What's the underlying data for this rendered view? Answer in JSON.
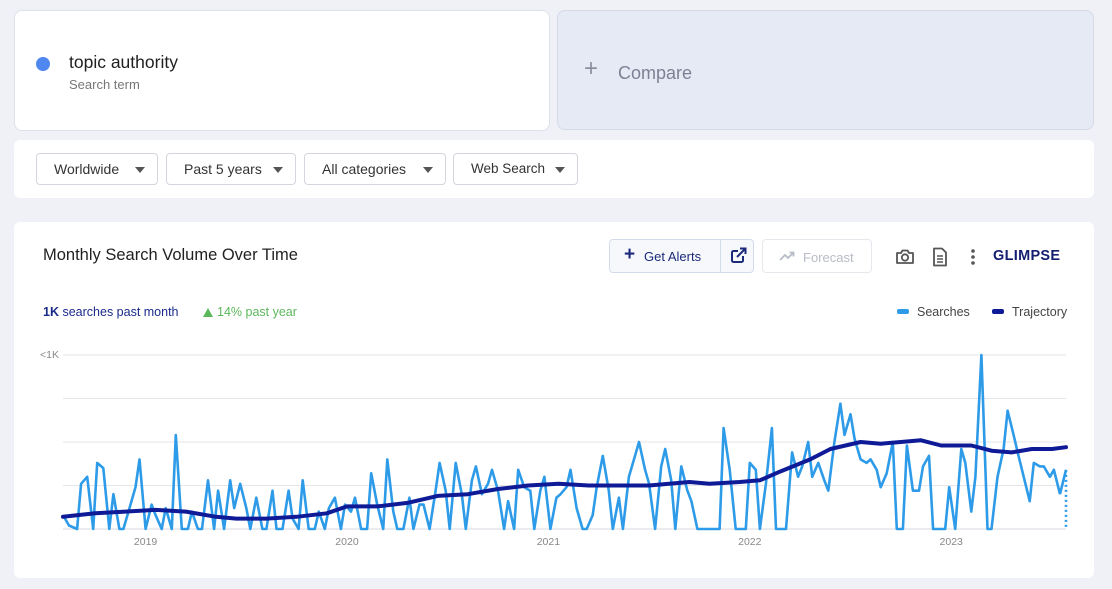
{
  "term": {
    "name": "topic authority",
    "subtitle": "Search term",
    "dot_color": "#4f86f0"
  },
  "compare": {
    "plus": "+",
    "label": "Compare"
  },
  "filters": {
    "region": "Worldwide",
    "time": "Past 5 years",
    "category": "All categories",
    "source": "Web Search"
  },
  "chart_header": {
    "title": "Monthly Search Volume Over Time",
    "get_alerts": "Get Alerts",
    "forecast": "Forecast",
    "brand": "GLIMPSE"
  },
  "stats": {
    "volume_bold": "1K",
    "volume_rest": "searches past month",
    "growth": "14% past year",
    "growth_color": "#5cb85c"
  },
  "legend": {
    "searches": "Searches",
    "trajectory": "Trajectory",
    "searches_color": "#2e9be8",
    "trajectory_color": "#0e1a96"
  },
  "chart_data": {
    "type": "line",
    "y_tick_label": "<1K",
    "ylim": [
      0,
      100
    ],
    "grid": true,
    "legend_position": "top-right",
    "x_ticks": [
      {
        "label": "2019",
        "date": 2019.0
      },
      {
        "label": "2020",
        "date": 2020.0
      },
      {
        "label": "2021",
        "date": 2021.0
      },
      {
        "label": "2022",
        "date": 2022.0
      },
      {
        "label": "2023",
        "date": 2023.0
      }
    ],
    "x_range": [
      2018.59,
      2023.57
    ],
    "series": [
      {
        "name": "Searches",
        "points": [
          [
            2018.59,
            8
          ],
          [
            2018.62,
            2
          ],
          [
            2018.66,
            0
          ],
          [
            2018.68,
            26
          ],
          [
            2018.71,
            30
          ],
          [
            2018.74,
            0
          ],
          [
            2018.76,
            38
          ],
          [
            2018.79,
            35
          ],
          [
            2018.82,
            0
          ],
          [
            2018.84,
            20
          ],
          [
            2018.87,
            0
          ],
          [
            2018.89,
            0
          ],
          [
            2018.92,
            12
          ],
          [
            2018.95,
            24
          ],
          [
            2018.97,
            40
          ],
          [
            2019.0,
            0
          ],
          [
            2019.03,
            14
          ],
          [
            2019.05,
            8
          ],
          [
            2019.08,
            0
          ],
          [
            2019.1,
            12
          ],
          [
            2019.13,
            0
          ],
          [
            2019.15,
            54
          ],
          [
            2019.18,
            0
          ],
          [
            2019.21,
            0
          ],
          [
            2019.23,
            10
          ],
          [
            2019.26,
            0
          ],
          [
            2019.28,
            0
          ],
          [
            2019.31,
            28
          ],
          [
            2019.34,
            0
          ],
          [
            2019.36,
            22
          ],
          [
            2019.39,
            0
          ],
          [
            2019.42,
            28
          ],
          [
            2019.44,
            12
          ],
          [
            2019.47,
            26
          ],
          [
            2019.5,
            12
          ],
          [
            2019.52,
            0
          ],
          [
            2019.55,
            18
          ],
          [
            2019.58,
            0
          ],
          [
            2019.6,
            0
          ],
          [
            2019.63,
            22
          ],
          [
            2019.65,
            0
          ],
          [
            2019.68,
            0
          ],
          [
            2019.71,
            22
          ],
          [
            2019.73,
            6
          ],
          [
            2019.76,
            0
          ],
          [
            2019.78,
            28
          ],
          [
            2019.81,
            0
          ],
          [
            2019.84,
            0
          ],
          [
            2019.86,
            10
          ],
          [
            2019.89,
            0
          ],
          [
            2019.91,
            12
          ],
          [
            2019.94,
            18
          ],
          [
            2019.97,
            0
          ],
          [
            2019.99,
            14
          ],
          [
            2020.02,
            10
          ],
          [
            2020.04,
            18
          ],
          [
            2020.07,
            0
          ],
          [
            2020.1,
            0
          ],
          [
            2020.12,
            32
          ],
          [
            2020.15,
            14
          ],
          [
            2020.18,
            0
          ],
          [
            2020.2,
            40
          ],
          [
            2020.23,
            10
          ],
          [
            2020.25,
            0
          ],
          [
            2020.28,
            0
          ],
          [
            2020.31,
            18
          ],
          [
            2020.33,
            0
          ],
          [
            2020.36,
            14
          ],
          [
            2020.38,
            14
          ],
          [
            2020.41,
            0
          ],
          [
            2020.44,
            22
          ],
          [
            2020.46,
            38
          ],
          [
            2020.49,
            22
          ],
          [
            2020.51,
            0
          ],
          [
            2020.54,
            38
          ],
          [
            2020.57,
            20
          ],
          [
            2020.59,
            0
          ],
          [
            2020.62,
            28
          ],
          [
            2020.64,
            36
          ],
          [
            2020.67,
            20
          ],
          [
            2020.7,
            26
          ],
          [
            2020.72,
            34
          ],
          [
            2020.75,
            22
          ],
          [
            2020.78,
            0
          ],
          [
            2020.8,
            16
          ],
          [
            2020.83,
            0
          ],
          [
            2020.85,
            34
          ],
          [
            2020.88,
            24
          ],
          [
            2020.91,
            22
          ],
          [
            2020.93,
            0
          ],
          [
            2020.96,
            22
          ],
          [
            2020.98,
            30
          ],
          [
            2021.01,
            0
          ],
          [
            2021.04,
            18
          ],
          [
            2021.06,
            20
          ],
          [
            2021.09,
            24
          ],
          [
            2021.11,
            34
          ],
          [
            2021.14,
            12
          ],
          [
            2021.17,
            0
          ],
          [
            2021.19,
            0
          ],
          [
            2021.22,
            8
          ],
          [
            2021.24,
            24
          ],
          [
            2021.27,
            42
          ],
          [
            2021.3,
            22
          ],
          [
            2021.32,
            0
          ],
          [
            2021.35,
            18
          ],
          [
            2021.37,
            0
          ],
          [
            2021.4,
            30
          ],
          [
            2021.43,
            42
          ],
          [
            2021.45,
            50
          ],
          [
            2021.48,
            34
          ],
          [
            2021.5,
            26
          ],
          [
            2021.53,
            0
          ],
          [
            2021.56,
            36
          ],
          [
            2021.58,
            46
          ],
          [
            2021.61,
            28
          ],
          [
            2021.63,
            0
          ],
          [
            2021.66,
            36
          ],
          [
            2021.69,
            22
          ],
          [
            2021.71,
            16
          ],
          [
            2021.74,
            0
          ],
          [
            2021.77,
            0
          ],
          [
            2021.79,
            0
          ],
          [
            2021.82,
            0
          ],
          [
            2021.85,
            0
          ],
          [
            2021.87,
            58
          ],
          [
            2021.9,
            34
          ],
          [
            2021.93,
            0
          ],
          [
            2021.95,
            0
          ],
          [
            2021.98,
            0
          ],
          [
            2022.0,
            38
          ],
          [
            2022.03,
            34
          ],
          [
            2022.05,
            0
          ],
          [
            2022.08,
            26
          ],
          [
            2022.11,
            58
          ],
          [
            2022.13,
            0
          ],
          [
            2022.16,
            0
          ],
          [
            2022.18,
            0
          ],
          [
            2022.21,
            44
          ],
          [
            2022.24,
            30
          ],
          [
            2022.26,
            36
          ],
          [
            2022.29,
            50
          ],
          [
            2022.31,
            30
          ],
          [
            2022.34,
            38
          ],
          [
            2022.37,
            28
          ],
          [
            2022.39,
            22
          ],
          [
            2022.42,
            50
          ],
          [
            2022.45,
            72
          ],
          [
            2022.47,
            54
          ],
          [
            2022.5,
            66
          ],
          [
            2022.52,
            52
          ],
          [
            2022.55,
            40
          ],
          [
            2022.58,
            38
          ],
          [
            2022.6,
            40
          ],
          [
            2022.63,
            34
          ],
          [
            2022.65,
            24
          ],
          [
            2022.68,
            32
          ],
          [
            2022.71,
            50
          ],
          [
            2022.73,
            0
          ],
          [
            2022.76,
            0
          ],
          [
            2022.78,
            48
          ],
          [
            2022.81,
            22
          ],
          [
            2022.84,
            22
          ],
          [
            2022.86,
            36
          ],
          [
            2022.89,
            42
          ],
          [
            2022.91,
            0
          ],
          [
            2022.94,
            0
          ],
          [
            2022.97,
            0
          ],
          [
            2022.99,
            24
          ],
          [
            2023.02,
            0
          ],
          [
            2023.05,
            46
          ],
          [
            2023.07,
            38
          ],
          [
            2023.1,
            10
          ],
          [
            2023.12,
            30
          ],
          [
            2023.15,
            100
          ],
          [
            2023.18,
            0
          ],
          [
            2023.2,
            0
          ],
          [
            2023.23,
            30
          ],
          [
            2023.26,
            46
          ],
          [
            2023.28,
            68
          ],
          [
            2023.31,
            54
          ],
          [
            2023.33,
            44
          ],
          [
            2023.36,
            30
          ],
          [
            2023.39,
            16
          ],
          [
            2023.41,
            38
          ],
          [
            2023.44,
            36
          ],
          [
            2023.46,
            36
          ],
          [
            2023.49,
            30
          ],
          [
            2023.51,
            34
          ],
          [
            2023.54,
            20
          ],
          [
            2023.57,
            34
          ]
        ]
      },
      {
        "name": "Trajectory",
        "points": [
          [
            2018.59,
            7
          ],
          [
            2018.75,
            9
          ],
          [
            2018.9,
            10
          ],
          [
            2019.05,
            11
          ],
          [
            2019.2,
            10
          ],
          [
            2019.35,
            7
          ],
          [
            2019.45,
            6
          ],
          [
            2019.6,
            6
          ],
          [
            2019.75,
            7
          ],
          [
            2019.9,
            9
          ],
          [
            2020.0,
            13
          ],
          [
            2020.15,
            13
          ],
          [
            2020.3,
            15
          ],
          [
            2020.45,
            19
          ],
          [
            2020.6,
            20
          ],
          [
            2020.75,
            23
          ],
          [
            2020.9,
            25
          ],
          [
            2021.05,
            26
          ],
          [
            2021.2,
            25
          ],
          [
            2021.35,
            25
          ],
          [
            2021.5,
            25
          ],
          [
            2021.6,
            26
          ],
          [
            2021.7,
            27
          ],
          [
            2021.8,
            26
          ],
          [
            2021.95,
            27
          ],
          [
            2022.05,
            28
          ],
          [
            2022.15,
            33
          ],
          [
            2022.3,
            40
          ],
          [
            2022.4,
            46
          ],
          [
            2022.55,
            50
          ],
          [
            2022.65,
            49
          ],
          [
            2022.75,
            50
          ],
          [
            2022.85,
            51
          ],
          [
            2022.95,
            48
          ],
          [
            2023.1,
            48
          ],
          [
            2023.2,
            45
          ],
          [
            2023.3,
            44
          ],
          [
            2023.4,
            46
          ],
          [
            2023.5,
            46
          ],
          [
            2023.57,
            47
          ]
        ]
      }
    ]
  }
}
